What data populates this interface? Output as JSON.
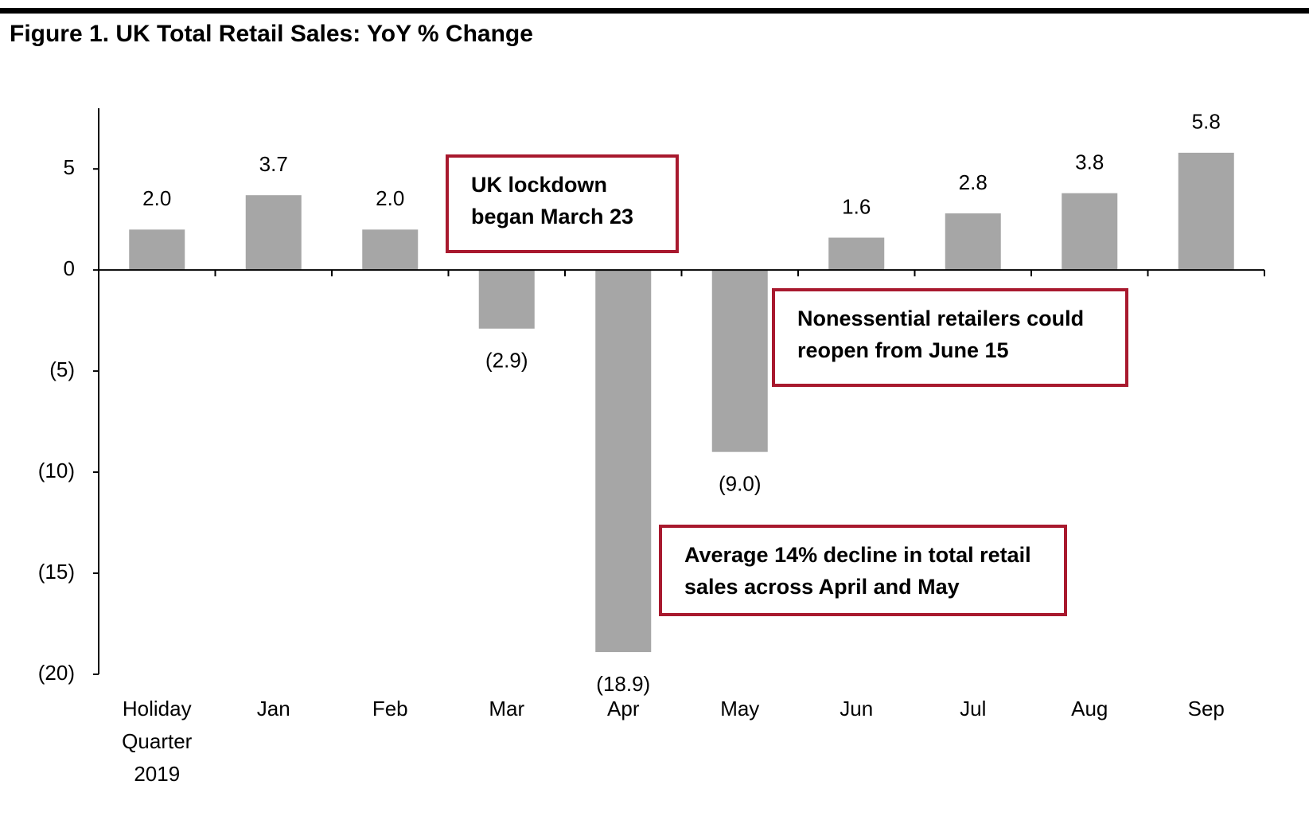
{
  "chart_data": {
    "type": "bar",
    "title": "Figure 1. UK Total Retail Sales: YoY % Change",
    "categories": [
      "Holiday Quarter 2019",
      "Jan",
      "Feb",
      "Mar",
      "Apr",
      "May",
      "Jun",
      "Jul",
      "Aug",
      "Sep"
    ],
    "values": [
      2.0,
      3.7,
      2.0,
      -2.9,
      -18.9,
      -9.0,
      1.6,
      2.8,
      3.8,
      5.8
    ],
    "value_labels": [
      "2.0",
      "3.7",
      "2.0",
      "(2.9)",
      "(18.9)",
      "(9.0)",
      "1.6",
      "2.8",
      "3.8",
      "5.8"
    ],
    "color": "#a6a6a6",
    "ylim": [
      -20,
      8
    ],
    "yticks": [
      5,
      0,
      {
        "value": -5,
        "label": "(5)"
      },
      {
        "value": -10,
        "label": "(10)"
      },
      {
        "value": -15,
        "label": "(15)"
      },
      {
        "value": -20,
        "label": "(20)"
      }
    ],
    "annotations": [
      "UK lockdown began March 23",
      "Nonessential retailers could reopen from June 15",
      "Average 14% decline in total retail sales across April and May"
    ]
  }
}
